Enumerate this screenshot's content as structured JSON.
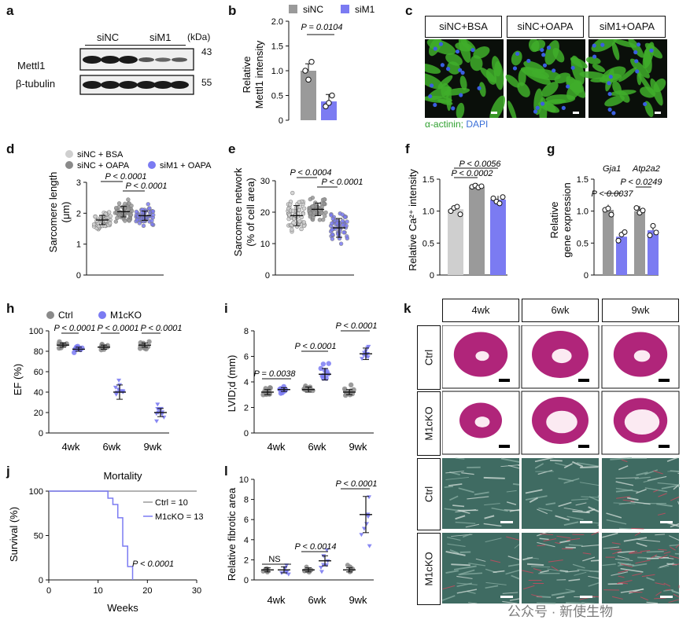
{
  "panel_labels": [
    "a",
    "b",
    "c",
    "d",
    "e",
    "f",
    "g",
    "h",
    "i",
    "j",
    "k",
    "l"
  ],
  "colors": {
    "siNC_BSA": "#cfcfcf",
    "siNC": "#9a9a9a",
    "siM1": "#7b7bf2",
    "ctrl": "#8a8a8a",
    "m1cko": "#7b7bf2",
    "he": "#b0257a",
    "sirius_bg": "#3f6b62"
  },
  "panel_a": {
    "header_left": "siNC",
    "header_right": "siM1",
    "unit": "(kDa)",
    "bands": [
      {
        "label": "Mettl1",
        "kda": "43"
      },
      {
        "label": "β-tubulin",
        "kda": "55"
      }
    ]
  },
  "panel_b": {
    "legend": [
      "siNC",
      "siM1"
    ],
    "ylabel": "Relative\nMettl1 intensity",
    "yticks": [
      "0",
      "0.5",
      "1.0",
      "1.5",
      "2.0"
    ],
    "pvalue": "P = 0.0104"
  },
  "panel_c": {
    "headers": [
      "siNC+BSA",
      "siNC+OAPA",
      "siM1+OAPA"
    ],
    "caption_green": "α-actinin;",
    "caption_blue": "DAPI"
  },
  "panel_d": {
    "legend": [
      "siNC + BSA",
      "siNC + OAPA",
      "siM1 + OAPA"
    ],
    "ylabel": "Sarcomere length\n(μm)",
    "yticks": [
      "0",
      "1",
      "2",
      "3"
    ],
    "pvalues": [
      "P < 0.0001",
      "P < 0.0001"
    ]
  },
  "panel_e": {
    "ylabel": "Sarcomere network\n(% of cell area)",
    "yticks": [
      "0",
      "10",
      "20",
      "30"
    ],
    "pvalues": [
      "P < 0.0004",
      "P < 0.0001"
    ]
  },
  "panel_f": {
    "ylabel": "Relative Ca²⁺ intensity",
    "yticks": [
      "0",
      "0.5",
      "1.0",
      "1.5"
    ],
    "pvalues": [
      "P < 0.0056",
      "P < 0.0002"
    ]
  },
  "panel_g": {
    "genes": [
      "Gja1",
      "Atp2a2"
    ],
    "ylabel": "Relative\ngene expression",
    "yticks": [
      "0",
      "0.5",
      "1.0",
      "1.5"
    ],
    "pvalues": [
      "P < 0.0037",
      "P < 0.0249"
    ]
  },
  "panel_h": {
    "legend": [
      "Ctrl",
      "M1cKO"
    ],
    "ylabel": "EF (%)",
    "yticks": [
      "0",
      "20",
      "40",
      "60",
      "80",
      "100"
    ],
    "xticks": [
      "4wk",
      "6wk",
      "9wk"
    ],
    "pvalues": [
      "P < 0.0001",
      "P < 0.0001",
      "P < 0.0001"
    ]
  },
  "panel_i": {
    "ylabel": "LVID;d (mm)",
    "yticks": [
      "0",
      "2",
      "4",
      "6",
      "8"
    ],
    "xticks": [
      "4wk",
      "6wk",
      "9wk"
    ],
    "pvalues": [
      "P = 0.0038",
      "P < 0.0001",
      "P < 0.0001"
    ]
  },
  "panel_j": {
    "title": "Mortality",
    "ylabel": "Survival (%)",
    "xlabel": "Weeks",
    "yticks": [
      "0",
      "50",
      "100"
    ],
    "xticks": [
      "0",
      "10",
      "20",
      "30"
    ],
    "legend": [
      "Ctrl = 10",
      "M1cKO = 13"
    ],
    "pvalue": "P < 0.0001"
  },
  "panel_k": {
    "col_headers": [
      "4wk",
      "6wk",
      "9wk"
    ],
    "row_labels": [
      "Ctrl",
      "M1cKO",
      "Ctrl",
      "M1cKO"
    ]
  },
  "panel_l": {
    "ylabel": "Relative fibrotic area",
    "yticks": [
      "0",
      "2",
      "4",
      "6",
      "8",
      "10"
    ],
    "xticks": [
      "4wk",
      "6wk",
      "9wk"
    ],
    "pvalues": [
      "NS",
      "P < 0.0014",
      "P < 0.0001"
    ]
  },
  "watermark": "公众号 · 新使生物",
  "chart_data": [
    {
      "panel": "b",
      "type": "bar",
      "categories": [
        "siNC",
        "siM1"
      ],
      "values": [
        1.0,
        0.38
      ],
      "points": [
        [
          1.0,
          0.82,
          1.18
        ],
        [
          0.28,
          0.35,
          0.5
        ]
      ],
      "ylim": [
        0,
        2.0
      ]
    },
    {
      "panel": "d",
      "type": "scatter",
      "categories": [
        "siNC + BSA",
        "siNC + OAPA",
        "siM1 + OAPA"
      ],
      "mean": [
        1.78,
        2.05,
        1.92
      ],
      "sd": [
        0.15,
        0.17,
        0.15
      ],
      "ylim": [
        0,
        3
      ]
    },
    {
      "panel": "e",
      "type": "scatter",
      "categories": [
        "siNC + BSA",
        "siNC + OAPA",
        "siM1 + OAPA"
      ],
      "mean": [
        18.9,
        20.9,
        15.0
      ],
      "sd": [
        3.2,
        2.0,
        3.0
      ],
      "ylim": [
        0,
        30
      ]
    },
    {
      "panel": "f",
      "type": "bar",
      "categories": [
        "siNC + BSA",
        "siNC + OAPA",
        "siM1 + OAPA"
      ],
      "values": [
        1.03,
        1.38,
        1.18
      ],
      "points": [
        [
          1.0,
          1.05,
          1.07,
          0.95
        ],
        [
          1.38,
          1.4,
          1.37,
          1.39
        ],
        [
          1.2,
          1.15,
          1.12,
          1.22
        ]
      ],
      "ylim": [
        0,
        1.5
      ]
    },
    {
      "panel": "g",
      "type": "bar",
      "categories": [
        "Gja1",
        "Atp2a2"
      ],
      "series": [
        {
          "name": "siNC",
          "values": [
            1.02,
            1.0
          ]
        },
        {
          "name": "siM1",
          "values": [
            0.6,
            0.7
          ]
        }
      ],
      "ylim": [
        0,
        1.5
      ]
    },
    {
      "panel": "h",
      "type": "scatter",
      "categories": [
        "4wk",
        "6wk",
        "9wk"
      ],
      "series": [
        {
          "name": "Ctrl",
          "mean": [
            86,
            84,
            86
          ]
        },
        {
          "name": "M1cKO",
          "mean": [
            82,
            40,
            20
          ]
        }
      ],
      "ylim": [
        0,
        100
      ]
    },
    {
      "panel": "i",
      "type": "scatter",
      "categories": [
        "4wk",
        "6wk",
        "9wk"
      ],
      "series": [
        {
          "name": "Ctrl",
          "mean": [
            3.2,
            3.4,
            3.2
          ]
        },
        {
          "name": "M1cKO",
          "mean": [
            3.4,
            4.6,
            6.2
          ]
        }
      ],
      "ylim": [
        0,
        8
      ]
    },
    {
      "panel": "j",
      "type": "line",
      "xlabel": "Weeks",
      "ylabel": "Survival (%)",
      "series": [
        {
          "name": "Ctrl = 10",
          "x": [
            0,
            30
          ],
          "y": [
            100,
            100
          ]
        },
        {
          "name": "M1cKO = 13",
          "x": [
            0,
            11,
            12,
            12.5,
            13,
            14,
            14.5,
            15,
            15.5,
            16,
            16.5,
            17
          ],
          "y": [
            100,
            100,
            92,
            92,
            85,
            70,
            70,
            38,
            38,
            15,
            15,
            0
          ]
        }
      ],
      "xlim": [
        0,
        30
      ],
      "ylim": [
        0,
        100
      ]
    },
    {
      "panel": "l",
      "type": "scatter",
      "categories": [
        "4wk",
        "6wk",
        "9wk"
      ],
      "series": [
        {
          "name": "Ctrl",
          "mean": [
            1.0,
            1.0,
            1.0
          ]
        },
        {
          "name": "M1cKO",
          "mean": [
            1.0,
            1.9,
            6.5
          ]
        }
      ],
      "ylim": [
        0,
        10
      ]
    }
  ]
}
